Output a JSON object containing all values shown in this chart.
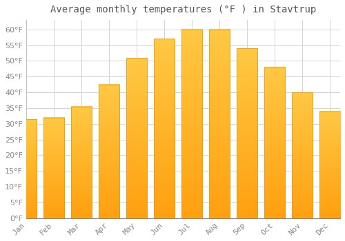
{
  "title": "Average monthly temperatures (°F ) in Stavtrup",
  "months": [
    "Jan",
    "Feb",
    "Mar",
    "Apr",
    "May",
    "Jun",
    "Jul",
    "Aug",
    "Sep",
    "Oct",
    "Nov",
    "Dec"
  ],
  "values": [
    31.5,
    32.0,
    35.5,
    42.5,
    51.0,
    57.0,
    60.0,
    60.0,
    54.0,
    48.0,
    40.0,
    34.0
  ],
  "bar_color_top": "#FFC844",
  "bar_color_bottom": "#FFA010",
  "bar_edge_color": "#E8960A",
  "background_color": "#FFFFFF",
  "grid_color": "#CCCCCC",
  "ylim": [
    0,
    63
  ],
  "yticks": [
    0,
    5,
    10,
    15,
    20,
    25,
    30,
    35,
    40,
    45,
    50,
    55,
    60
  ],
  "title_fontsize": 10,
  "tick_fontsize": 8,
  "tick_color": "#888888",
  "title_color": "#555555"
}
